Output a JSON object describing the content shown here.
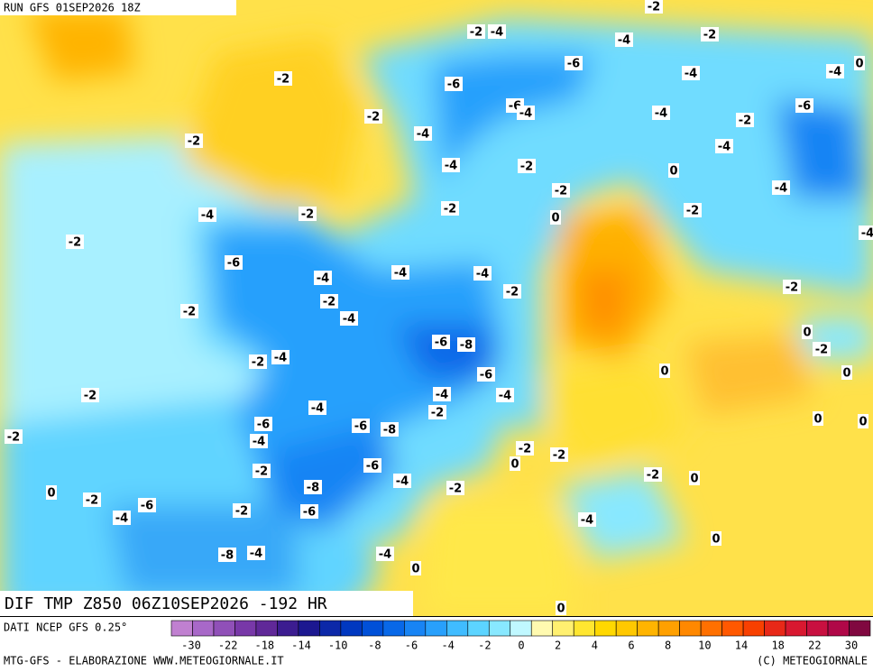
{
  "header": {
    "run": "RUN GFS 01SEP2026 18Z"
  },
  "map": {
    "title": "DIF TMP Z850 06Z10SEP2026 -192 HR",
    "contour_labels": [
      "-2",
      "-2",
      "-4",
      "-4",
      "-2",
      "-6",
      "-4",
      "-4",
      "0",
      "-2",
      "-6",
      "-6",
      "-4",
      "-2",
      "-4",
      "-2",
      "-6",
      "-2",
      "-4",
      "-4",
      "-4",
      "-2",
      "0",
      "-2",
      "-4",
      "-4",
      "-2",
      "-2",
      "0",
      "-2",
      "-2",
      "-4",
      "-6",
      "-4",
      "-4",
      "-4",
      "-2",
      "-2",
      "-2",
      "-2",
      "-4",
      "0",
      "-2",
      "-6",
      "-8",
      "-2",
      "-4",
      "0",
      "0",
      "-2",
      "-6",
      "-4",
      "-4",
      "-4",
      "-2",
      "0",
      "0",
      "-6",
      "-6",
      "-8",
      "-2",
      "-4",
      "-2",
      "-2",
      "0",
      "-6",
      "-2",
      "-2",
      "-4",
      "0",
      "0",
      "-2",
      "-8",
      "-2",
      "-6",
      "-2",
      "-6",
      "-4",
      "-4",
      "0",
      "-8",
      "-4",
      "-4",
      "0",
      "0"
    ]
  },
  "legend": {
    "source": "DATI NCEP GFS 0.25°",
    "colors": [
      "#c080d0",
      "#a868c8",
      "#9050b8",
      "#7838a8",
      "#602898",
      "#3c1c90",
      "#1c1890",
      "#0c28a8",
      "#0038c0",
      "#0050d8",
      "#0868e8",
      "#1884f4",
      "#28a0fc",
      "#40bcff",
      "#5cd4ff",
      "#88e8ff",
      "#c0f8ff",
      "#fffab0",
      "#fff070",
      "#ffe630",
      "#ffd800",
      "#ffc800",
      "#ffb400",
      "#ffa000",
      "#ff8800",
      "#ff7000",
      "#ff5800",
      "#f84000",
      "#e82818",
      "#d81830",
      "#c81040",
      "#b00848",
      "#800840"
    ],
    "ticks": [
      -30,
      -22,
      -18,
      -14,
      -10,
      -8,
      -6,
      -4,
      -2,
      0,
      2,
      4,
      6,
      8,
      10,
      14,
      18,
      22,
      30
    ]
  },
  "footer": {
    "left": "MTG-GFS - ELABORAZIONE WWW.METEOGIORNALE.IT",
    "right": "(C) METEOGIORNALE"
  }
}
